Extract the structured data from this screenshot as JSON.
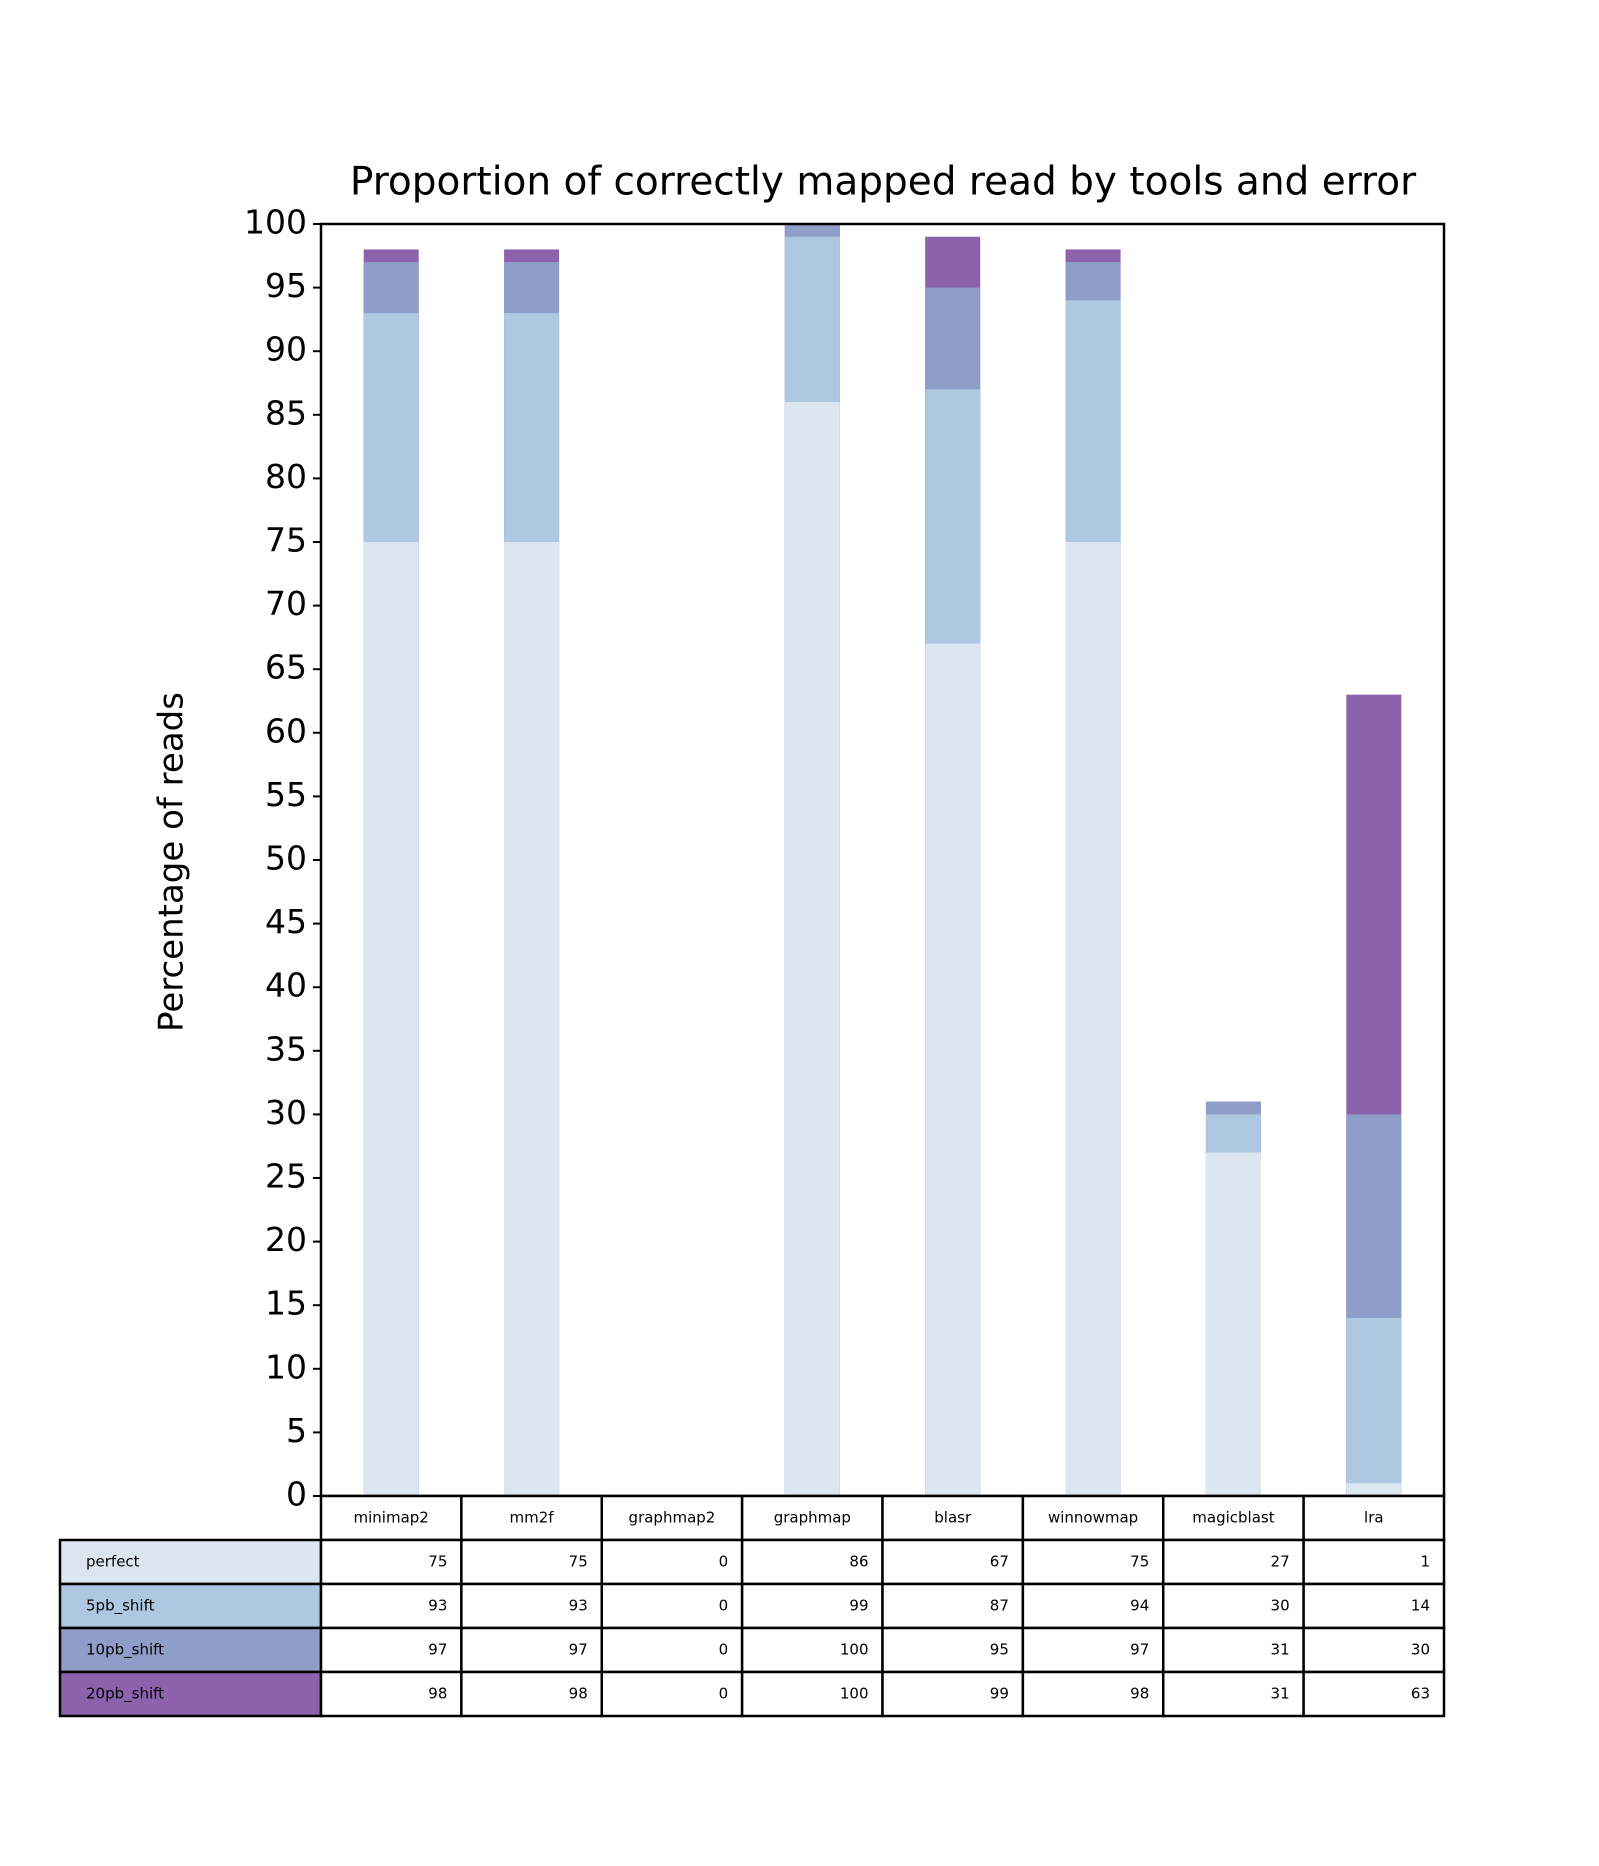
{
  "chart_data": {
    "type": "bar",
    "title": "Proportion of correctly mapped read by tools and error",
    "ylabel": "Percentage of reads",
    "categories": [
      "minimap2",
      "mm2f",
      "graphmap2",
      "graphmap",
      "blasr",
      "winnowmap",
      "magicblast",
      "lra"
    ],
    "series": [
      {
        "name": "perfect",
        "color": "#dbe6f0",
        "values": [
          75,
          75,
          0,
          86,
          67,
          75,
          27,
          1
        ]
      },
      {
        "name": "5pb_shift",
        "color": "#aec8e1",
        "values": [
          93,
          93,
          0,
          99,
          87,
          94,
          30,
          14
        ]
      },
      {
        "name": "10pb_shift",
        "color": "#8f9dc9",
        "values": [
          97,
          97,
          0,
          100,
          95,
          97,
          31,
          30
        ]
      },
      {
        "name": "20pb_shift",
        "color": "#8c62ad",
        "values": [
          98,
          98,
          0,
          100,
          99,
          98,
          31,
          63
        ]
      }
    ],
    "ylim": [
      0,
      100
    ],
    "yticks": [
      0,
      5,
      10,
      15,
      20,
      25,
      30,
      35,
      40,
      45,
      50,
      55,
      60,
      65,
      70,
      75,
      80,
      85,
      90,
      95,
      100
    ]
  }
}
